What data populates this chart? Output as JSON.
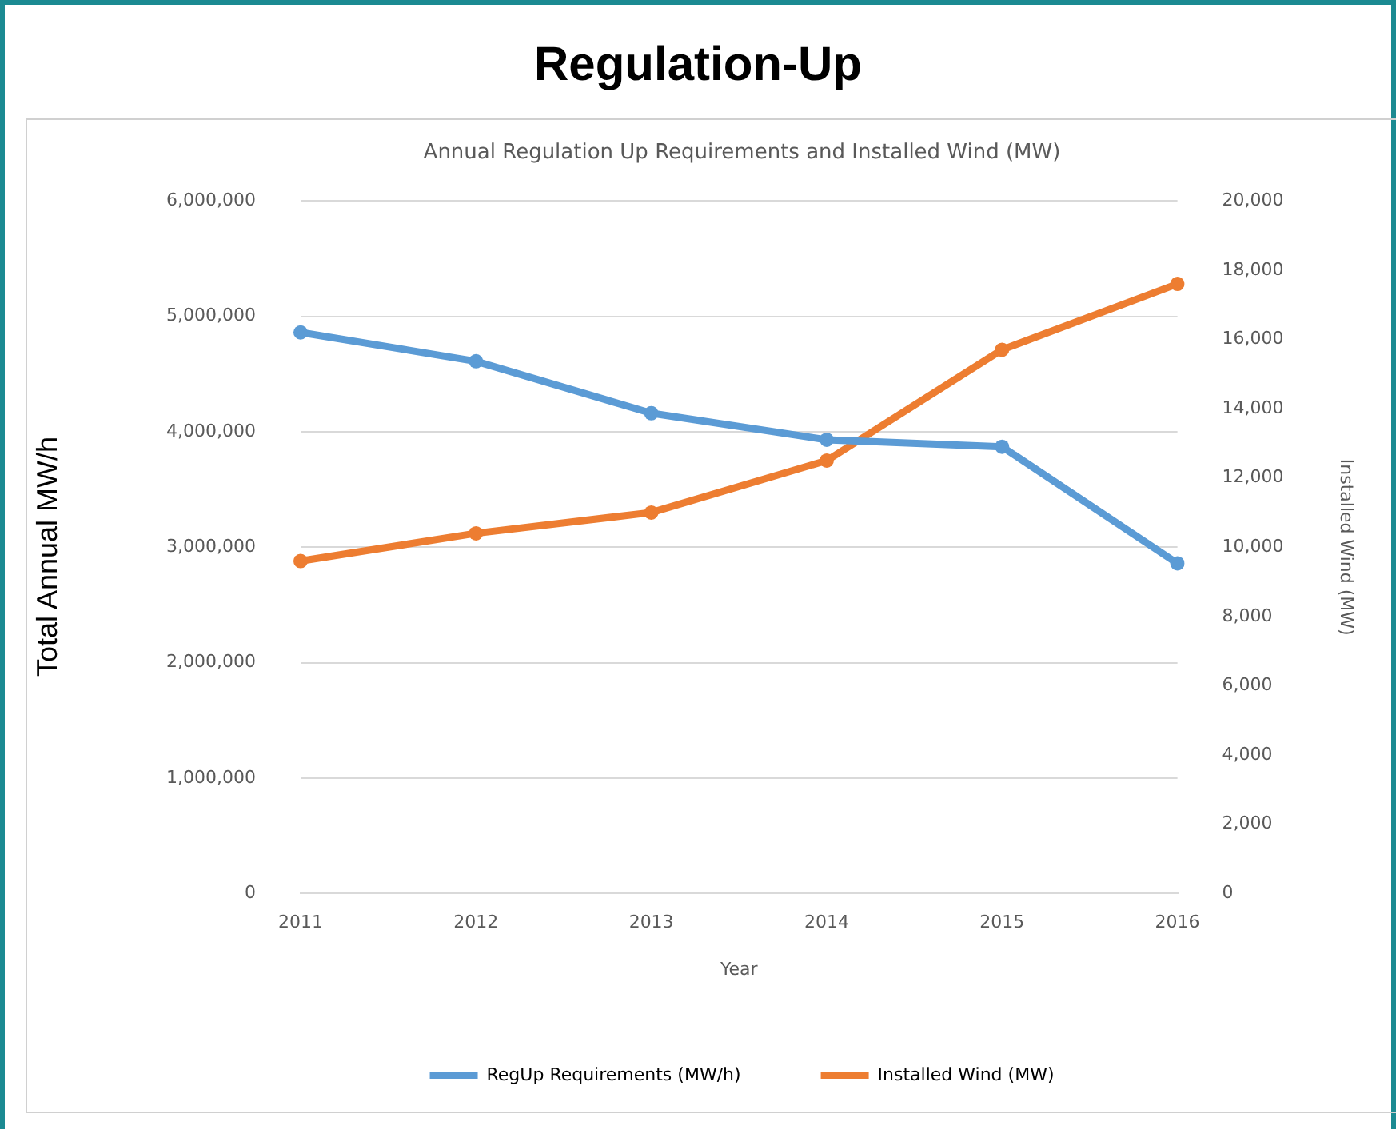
{
  "chart_data": {
    "type": "line",
    "title": "Regulation-Up",
    "subtitle": "Annual Regulation Up Requirements and Installed Wind (MW)",
    "xlabel": "Year",
    "ylabel": "Total Annual MW/h",
    "y2label": "Installed Wind (MW)",
    "categories": [
      "2011",
      "2012",
      "2013",
      "2014",
      "2015",
      "2016"
    ],
    "series": [
      {
        "name": "RegUp Requirements (MW/h)",
        "color": "#5b9bd5",
        "values": [
          4860000,
          4610000,
          4160000,
          3930000,
          3870000,
          2860000
        ]
      },
      {
        "name": "Installed Wind (MW)",
        "color": "#ed7d31",
        "axis": "y2",
        "values": [
          9600,
          10400,
          11000,
          12500,
          15700,
          17600
        ]
      }
    ],
    "ylim": [
      0,
      6000000
    ],
    "yticks": [
      {
        "value": 0,
        "label": "0"
      },
      {
        "value": 1000000,
        "label": "1,000,000"
      },
      {
        "value": 2000000,
        "label": "2,000,000"
      },
      {
        "value": 3000000,
        "label": "3,000,000"
      },
      {
        "value": 4000000,
        "label": "4,000,000"
      },
      {
        "value": 5000000,
        "label": "5,000,000"
      },
      {
        "value": 6000000,
        "label": "6,000,000"
      }
    ],
    "y2lim": [
      0,
      20000
    ],
    "y2ticks": [
      {
        "value": 0,
        "label": "0"
      },
      {
        "value": 2000,
        "label": "2,000"
      },
      {
        "value": 4000,
        "label": "4,000"
      },
      {
        "value": 6000,
        "label": "6,000"
      },
      {
        "value": 8000,
        "label": "8,000"
      },
      {
        "value": 10000,
        "label": "10,000"
      },
      {
        "value": 12000,
        "label": "12,000"
      },
      {
        "value": 14000,
        "label": "14,000"
      },
      {
        "value": 16000,
        "label": "16,000"
      },
      {
        "value": 18000,
        "label": "18,000"
      },
      {
        "value": 20000,
        "label": "20,000"
      }
    ],
    "grid": "y",
    "legend": "bottom",
    "marker": "circle",
    "line_style": "solid"
  }
}
